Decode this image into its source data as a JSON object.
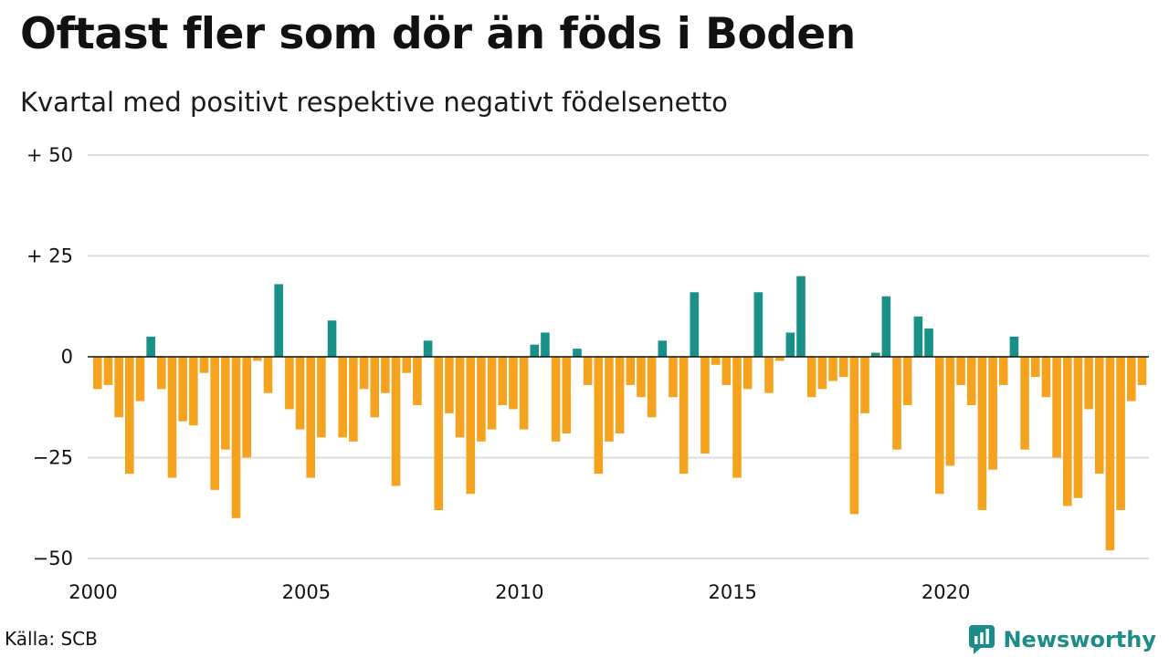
{
  "title": "Oftast fler som dör än föds i Boden",
  "subtitle": "Kvartal med positivt respektive negativt födelsenetto",
  "source": "Källa: SCB",
  "brand": {
    "name": "Newsworthy",
    "icon": "newsworthy-logo-icon",
    "color": "#1b8c88"
  },
  "colors": {
    "positive": "#1a9188",
    "negative": "#f5a31f",
    "grid": "#dddddd",
    "zero_line": "#111111"
  },
  "chart_data": {
    "type": "bar",
    "title": "Oftast fler som dör än föds i Boden",
    "subtitle": "Kvartal med positivt respektive negativt födelsenetto",
    "xlabel": "",
    "ylabel": "",
    "ylim": [
      -50,
      50
    ],
    "y_ticks": [
      {
        "value": 50,
        "label": "+ 50"
      },
      {
        "value": 25,
        "label": "+ 25"
      },
      {
        "value": 0,
        "label": "0"
      },
      {
        "value": -25,
        "label": "−25"
      },
      {
        "value": -50,
        "label": "−50"
      }
    ],
    "x_ticks": [
      "2000",
      "2005",
      "2010",
      "2015",
      "2020"
    ],
    "start_year": 2000,
    "quarters_per_year": 4,
    "grid": true,
    "values": [
      -8,
      -7,
      -15,
      -29,
      -11,
      5,
      -8,
      -30,
      -16,
      -17,
      -4,
      -33,
      -23,
      -40,
      -25,
      -1,
      -9,
      18,
      -13,
      -18,
      -30,
      -20,
      9,
      -20,
      -21,
      -8,
      -15,
      -9,
      -32,
      -4,
      -12,
      4,
      -38,
      -14,
      -20,
      -34,
      -21,
      -18,
      -12,
      -13,
      -18,
      3,
      6,
      -21,
      -19,
      2,
      -7,
      -29,
      -21,
      -19,
      -7,
      -10,
      -15,
      4,
      -10,
      -29,
      16,
      -24,
      -2,
      -7,
      -30,
      -8,
      16,
      -9,
      -1,
      6,
      20,
      -10,
      -8,
      -6,
      -5,
      -39,
      -14,
      1,
      15,
      -23,
      -12,
      10,
      7,
      -34,
      -27,
      -7,
      -12,
      -38,
      -28,
      -7,
      5,
      -23,
      -5,
      -10,
      -25,
      -37,
      -35,
      -13,
      -29,
      -48,
      -38,
      -11,
      -7
    ]
  }
}
